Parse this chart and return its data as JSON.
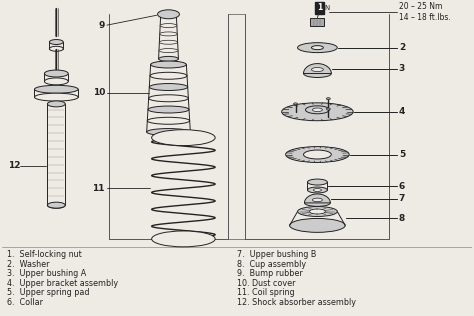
{
  "bg_color": "#eeebe5",
  "line_color": "#222222",
  "torque_label": "20 – 25 Nm\n14 – 18 ft.lbs.",
  "parts_left": [
    "1.  Self-locking nut",
    "2.  Washer",
    "3.  Upper bushing A",
    "4.  Upper bracket assembly",
    "5.  Upper spring pad",
    "6.  Collar"
  ],
  "parts_right": [
    "7.  Upper bushing B",
    "8.  Cup assembly",
    "9.  Bump rubber",
    "10. Dust cover",
    "11. Coil spring",
    "12. Shock absorber assembly"
  ],
  "font_size_labels": 5.8,
  "font_size_numbers": 6.5,
  "font_size_torque": 5.5
}
